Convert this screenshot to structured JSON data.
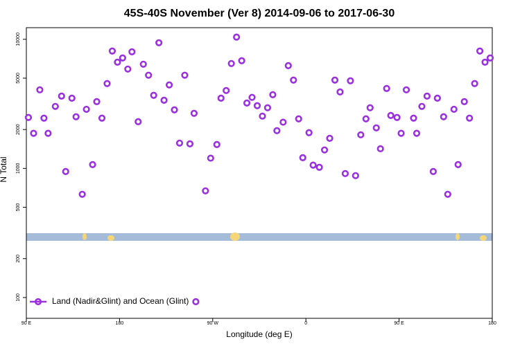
{
  "chart_data": {
    "type": "scatter",
    "title": "45S-40S November (Ver 8)   2014-09-06 to 2017-06-30",
    "x_label": "Longitude (deg E)",
    "y_label": "N Total",
    "y_scale": "log",
    "legend_position": "bottom left",
    "xlim": [
      90,
      540
    ],
    "xticks": [
      {
        "value": 90,
        "label": "90 E"
      },
      180,
      {
        "value": 270,
        "label": "90 W"
      },
      {
        "value": 360,
        "label": "0"
      },
      {
        "value": 450,
        "label": "90 E"
      },
      {
        "value": 540,
        "label": "180"
      }
    ],
    "ylim": [
      69,
      12300
    ],
    "yticks": [
      100,
      200,
      500,
      1000,
      2000,
      5000,
      10000
    ],
    "x": [
      92,
      97,
      103,
      107,
      111,
      118,
      124,
      128,
      134,
      138,
      144,
      148,
      154,
      158,
      163,
      168,
      173,
      178,
      183,
      188,
      192,
      198,
      203,
      208,
      213,
      218,
      223,
      228,
      233,
      238,
      243,
      248,
      252,
      263,
      268,
      274,
      278,
      283,
      288,
      293,
      298,
      303,
      308,
      313,
      318,
      323,
      328,
      332,
      338,
      343,
      348,
      353,
      357,
      363,
      367,
      373,
      378,
      383,
      388,
      393,
      398,
      403,
      408,
      413,
      418,
      422,
      428,
      432,
      438,
      442,
      448,
      452,
      457,
      464,
      467,
      472,
      477,
      483,
      487,
      493,
      497,
      503,
      507,
      513,
      518,
      523,
      528,
      533,
      538
    ],
    "series": [
      {
        "name": "Land (Nadir&Glint) and Ocean (Glint)",
        "color": "#9b30e0",
        "values": [
          2480,
          1870,
          4060,
          2450,
          1870,
          3020,
          3630,
          946,
          3500,
          2510,
          630,
          2870,
          1070,
          3290,
          2450,
          4540,
          8110,
          6650,
          7170,
          5880,
          8000,
          2300,
          6410,
          5270,
          3680,
          9400,
          3370,
          4430,
          2840,
          1570,
          5270,
          1550,
          2670,
          670,
          1200,
          1530,
          3500,
          4010,
          6490,
          10400,
          6820,
          3210,
          3550,
          3060,
          2540,
          2950,
          3720,
          1960,
          2280,
          6250,
          4830,
          2420,
          1210,
          1890,
          1060,
          1020,
          1390,
          1710,
          4830,
          3910,
          912,
          4770,
          879,
          1820,
          2420,
          2950,
          2060,
          1420,
          4160,
          2570,
          2480,
          1870,
          4060,
          2450,
          1870,
          3020,
          3630,
          946,
          3500,
          2510,
          630,
          2870,
          1070,
          3290,
          2450,
          4540,
          8110,
          6650,
          7170
        ]
      }
    ]
  }
}
